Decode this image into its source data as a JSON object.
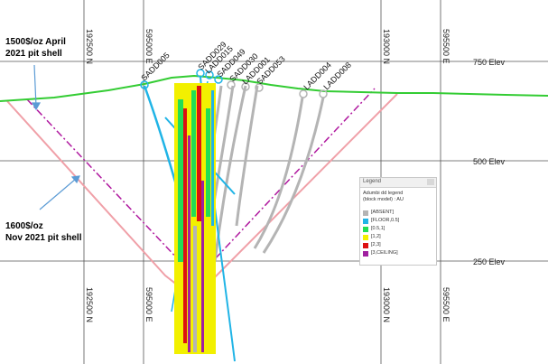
{
  "grid": {
    "elev_labels": [
      "750 Elev",
      "500 Elev",
      "250 Elev"
    ],
    "northing_labels": [
      "192500 N",
      "193000 N"
    ],
    "easting_labels": [
      "595000 E",
      "595500 E"
    ]
  },
  "drillholes": [
    "SADD005",
    "SADD029",
    "LADD015",
    "SADD049",
    "SADD030",
    "LADD001",
    "SADD053",
    "LADD004",
    "LADD008"
  ],
  "annotations": {
    "april_shell": [
      "1500$/oz April",
      "2021 pit shell"
    ],
    "nov_shell": [
      "1600$/oz",
      "Nov 2021 pit shell"
    ]
  },
  "legend": {
    "title": "Legend",
    "subtitle_line1": "Adumbi dd legend",
    "subtitle_line2": "(block model) : AU",
    "items": [
      {
        "label": "[ABSENT]",
        "color": "#b4b4b4"
      },
      {
        "label": "[FLOOR,0.5]",
        "color": "#20b4e6"
      },
      {
        "label": "[0.5,1]",
        "color": "#22dd55"
      },
      {
        "label": "[1,2]",
        "color": "#f2f000"
      },
      {
        "label": "[2,3]",
        "color": "#dd1111"
      },
      {
        "label": "[3,CEILING]",
        "color": "#a020a0"
      }
    ]
  },
  "colors": {
    "topography": "#33cc33",
    "april_shell": "#b0199f",
    "nov_shell": "#f0a0a8",
    "arrow": "#5b9bd5",
    "grid": "#555555"
  }
}
